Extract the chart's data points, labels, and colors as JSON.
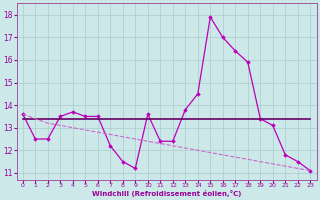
{
  "xlabel": "Windchill (Refroidissement éolien,°C)",
  "background_color": "#cce8e8",
  "grid_color": "#aacccc",
  "xlim": [
    -0.5,
    23.5
  ],
  "ylim": [
    10.7,
    18.5
  ],
  "yticks": [
    11,
    12,
    13,
    14,
    15,
    16,
    17,
    18
  ],
  "xticks": [
    0,
    1,
    2,
    3,
    4,
    5,
    6,
    7,
    8,
    9,
    10,
    11,
    12,
    13,
    14,
    15,
    16,
    17,
    18,
    19,
    20,
    21,
    22,
    23
  ],
  "series": [
    {
      "x": [
        0,
        1,
        2,
        3,
        4,
        5,
        6,
        7,
        8,
        9,
        10,
        11,
        12,
        13,
        14,
        15,
        16,
        17,
        18,
        19,
        20,
        21,
        22,
        23
      ],
      "y": [
        13.6,
        12.5,
        12.5,
        13.5,
        13.7,
        13.5,
        13.5,
        12.2,
        11.5,
        11.2,
        13.6,
        12.4,
        12.4,
        13.8,
        14.5,
        17.9,
        17.0,
        16.4,
        15.9,
        13.4,
        13.1,
        11.8,
        11.5,
        11.1
      ],
      "color": "#bb00bb",
      "linewidth": 0.9,
      "marker": "D",
      "markersize": 1.8
    },
    {
      "x": [
        0,
        23
      ],
      "y": [
        13.4,
        13.4
      ],
      "color": "#660066",
      "linewidth": 1.2,
      "linestyle": "solid",
      "marker": null
    },
    {
      "x": [
        0,
        1,
        2,
        3,
        4,
        5,
        6,
        7,
        8,
        9,
        10,
        11,
        12,
        13,
        14,
        15,
        16,
        17,
        18,
        19,
        20,
        21,
        22,
        23
      ],
      "y": [
        13.6,
        13.4,
        13.2,
        13.1,
        13.0,
        12.9,
        12.8,
        12.7,
        12.6,
        12.5,
        12.4,
        12.3,
        12.2,
        12.1,
        12.0,
        11.9,
        11.8,
        11.7,
        11.6,
        11.5,
        11.4,
        11.3,
        11.2,
        11.1
      ],
      "color": "#cc66cc",
      "linewidth": 0.8,
      "linestyle": "dashed",
      "marker": null
    }
  ]
}
